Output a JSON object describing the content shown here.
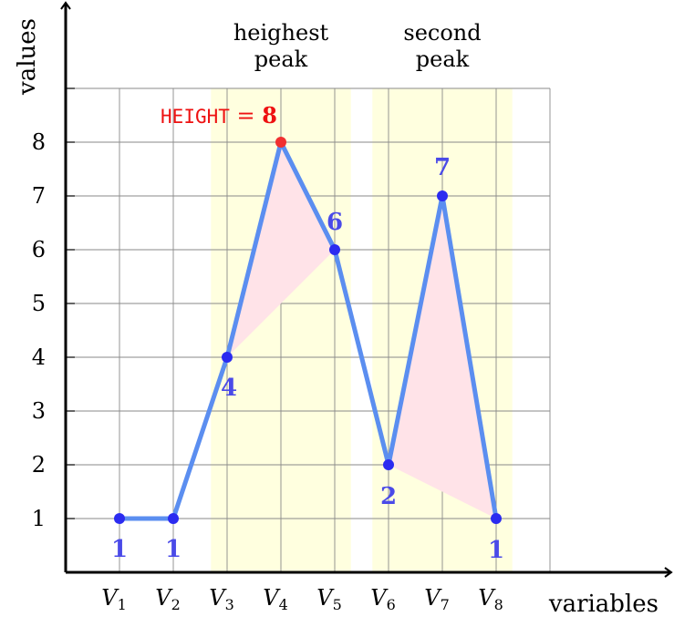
{
  "chart_data": {
    "type": "line",
    "xlabel": "variables",
    "ylabel": "values",
    "categories": [
      "V1",
      "V2",
      "V3",
      "V4",
      "V5",
      "V6",
      "V7",
      "V8"
    ],
    "category_main": [
      "V",
      "V",
      "V",
      "V",
      "V",
      "V",
      "V",
      "V"
    ],
    "category_sub": [
      "1",
      "2",
      "3",
      "4",
      "5",
      "6",
      "7",
      "8"
    ],
    "yticks": [
      1,
      2,
      3,
      4,
      5,
      6,
      7,
      8
    ],
    "xlim": [
      0,
      9
    ],
    "ylim": [
      0,
      9
    ],
    "grid": true,
    "series": [
      {
        "values": [
          1,
          1,
          4,
          8,
          6,
          2,
          7,
          1
        ]
      }
    ],
    "point_labels": [
      "1",
      "1",
      "4",
      "",
      "6",
      "2",
      "7",
      "1"
    ],
    "highlight_regions": [
      {
        "x_from": 2.7,
        "x_to": 5.3,
        "label_line1": "heighest",
        "label_line2": "peak"
      },
      {
        "x_from": 5.7,
        "x_to": 8.3,
        "label_line1": "second",
        "label_line2": "peak"
      }
    ],
    "peaks": [
      {
        "triangle": [
          [
            3,
            4
          ],
          [
            4,
            8
          ],
          [
            5,
            6
          ]
        ]
      },
      {
        "triangle": [
          [
            6,
            2
          ],
          [
            7,
            7
          ],
          [
            8,
            1
          ]
        ]
      }
    ],
    "max_annotation": {
      "x": 4,
      "y": 8,
      "prefix": "HEIGHT",
      "equals": " = ",
      "value": "8"
    },
    "colors": {
      "line": "#5b8ef0",
      "point": "#2b2bf0",
      "point_label": "#4a4ae8",
      "max_point": "#f03030",
      "annotation": "#ee1111",
      "highlight": "#ffffdf",
      "triangle_fill": "#ffe3e8",
      "grid": "#8a8a8a",
      "axis": "#000000"
    }
  }
}
